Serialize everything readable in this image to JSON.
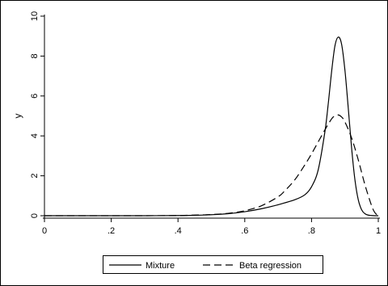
{
  "chart_data": {
    "type": "line",
    "title": "",
    "xlabel": "",
    "ylabel": "y",
    "xlim": [
      0,
      1
    ],
    "ylim": [
      0,
      10
    ],
    "x_ticks": [
      0,
      0.2,
      0.4,
      0.6,
      0.8,
      1
    ],
    "x_tick_labels": [
      "0",
      ".2",
      ".4",
      ".6",
      ".8",
      "1"
    ],
    "y_ticks": [
      0,
      2,
      4,
      6,
      8,
      10
    ],
    "y_tick_labels": [
      "0",
      "2",
      "4",
      "6",
      "8",
      "10"
    ],
    "grid": false,
    "legend_position": "bottom",
    "series": [
      {
        "name": "Mixture",
        "style": "solid",
        "color": "#000000",
        "x": [
          0,
          0.1,
          0.2,
          0.3,
          0.4,
          0.45,
          0.5,
          0.55,
          0.6,
          0.65,
          0.7,
          0.75,
          0.78,
          0.8,
          0.82,
          0.84,
          0.85,
          0.86,
          0.87,
          0.88,
          0.89,
          0.9,
          0.91,
          0.92,
          0.93,
          0.94,
          0.95,
          0.96,
          0.97,
          0.98,
          0.99,
          1.0
        ],
        "y": [
          0,
          0,
          0,
          0,
          0.01,
          0.02,
          0.05,
          0.1,
          0.2,
          0.35,
          0.55,
          0.8,
          1.05,
          1.45,
          2.3,
          4.2,
          5.6,
          7.2,
          8.5,
          8.95,
          8.6,
          7.3,
          5.4,
          3.4,
          1.8,
          0.8,
          0.3,
          0.1,
          0.03,
          0.01,
          0,
          0
        ]
      },
      {
        "name": "Beta regression",
        "style": "dashed",
        "color": "#000000",
        "x": [
          0,
          0.1,
          0.2,
          0.3,
          0.4,
          0.45,
          0.5,
          0.55,
          0.6,
          0.65,
          0.7,
          0.72,
          0.75,
          0.78,
          0.8,
          0.82,
          0.84,
          0.86,
          0.87,
          0.88,
          0.89,
          0.9,
          0.92,
          0.94,
          0.96,
          0.98,
          0.99,
          1.0
        ],
        "y": [
          0,
          0,
          0,
          0,
          0.01,
          0.03,
          0.06,
          0.12,
          0.25,
          0.5,
          0.95,
          1.25,
          1.8,
          2.55,
          3.1,
          3.7,
          4.3,
          4.85,
          5.0,
          5.05,
          4.95,
          4.7,
          3.9,
          2.8,
          1.55,
          0.5,
          0.15,
          0
        ]
      }
    ]
  }
}
